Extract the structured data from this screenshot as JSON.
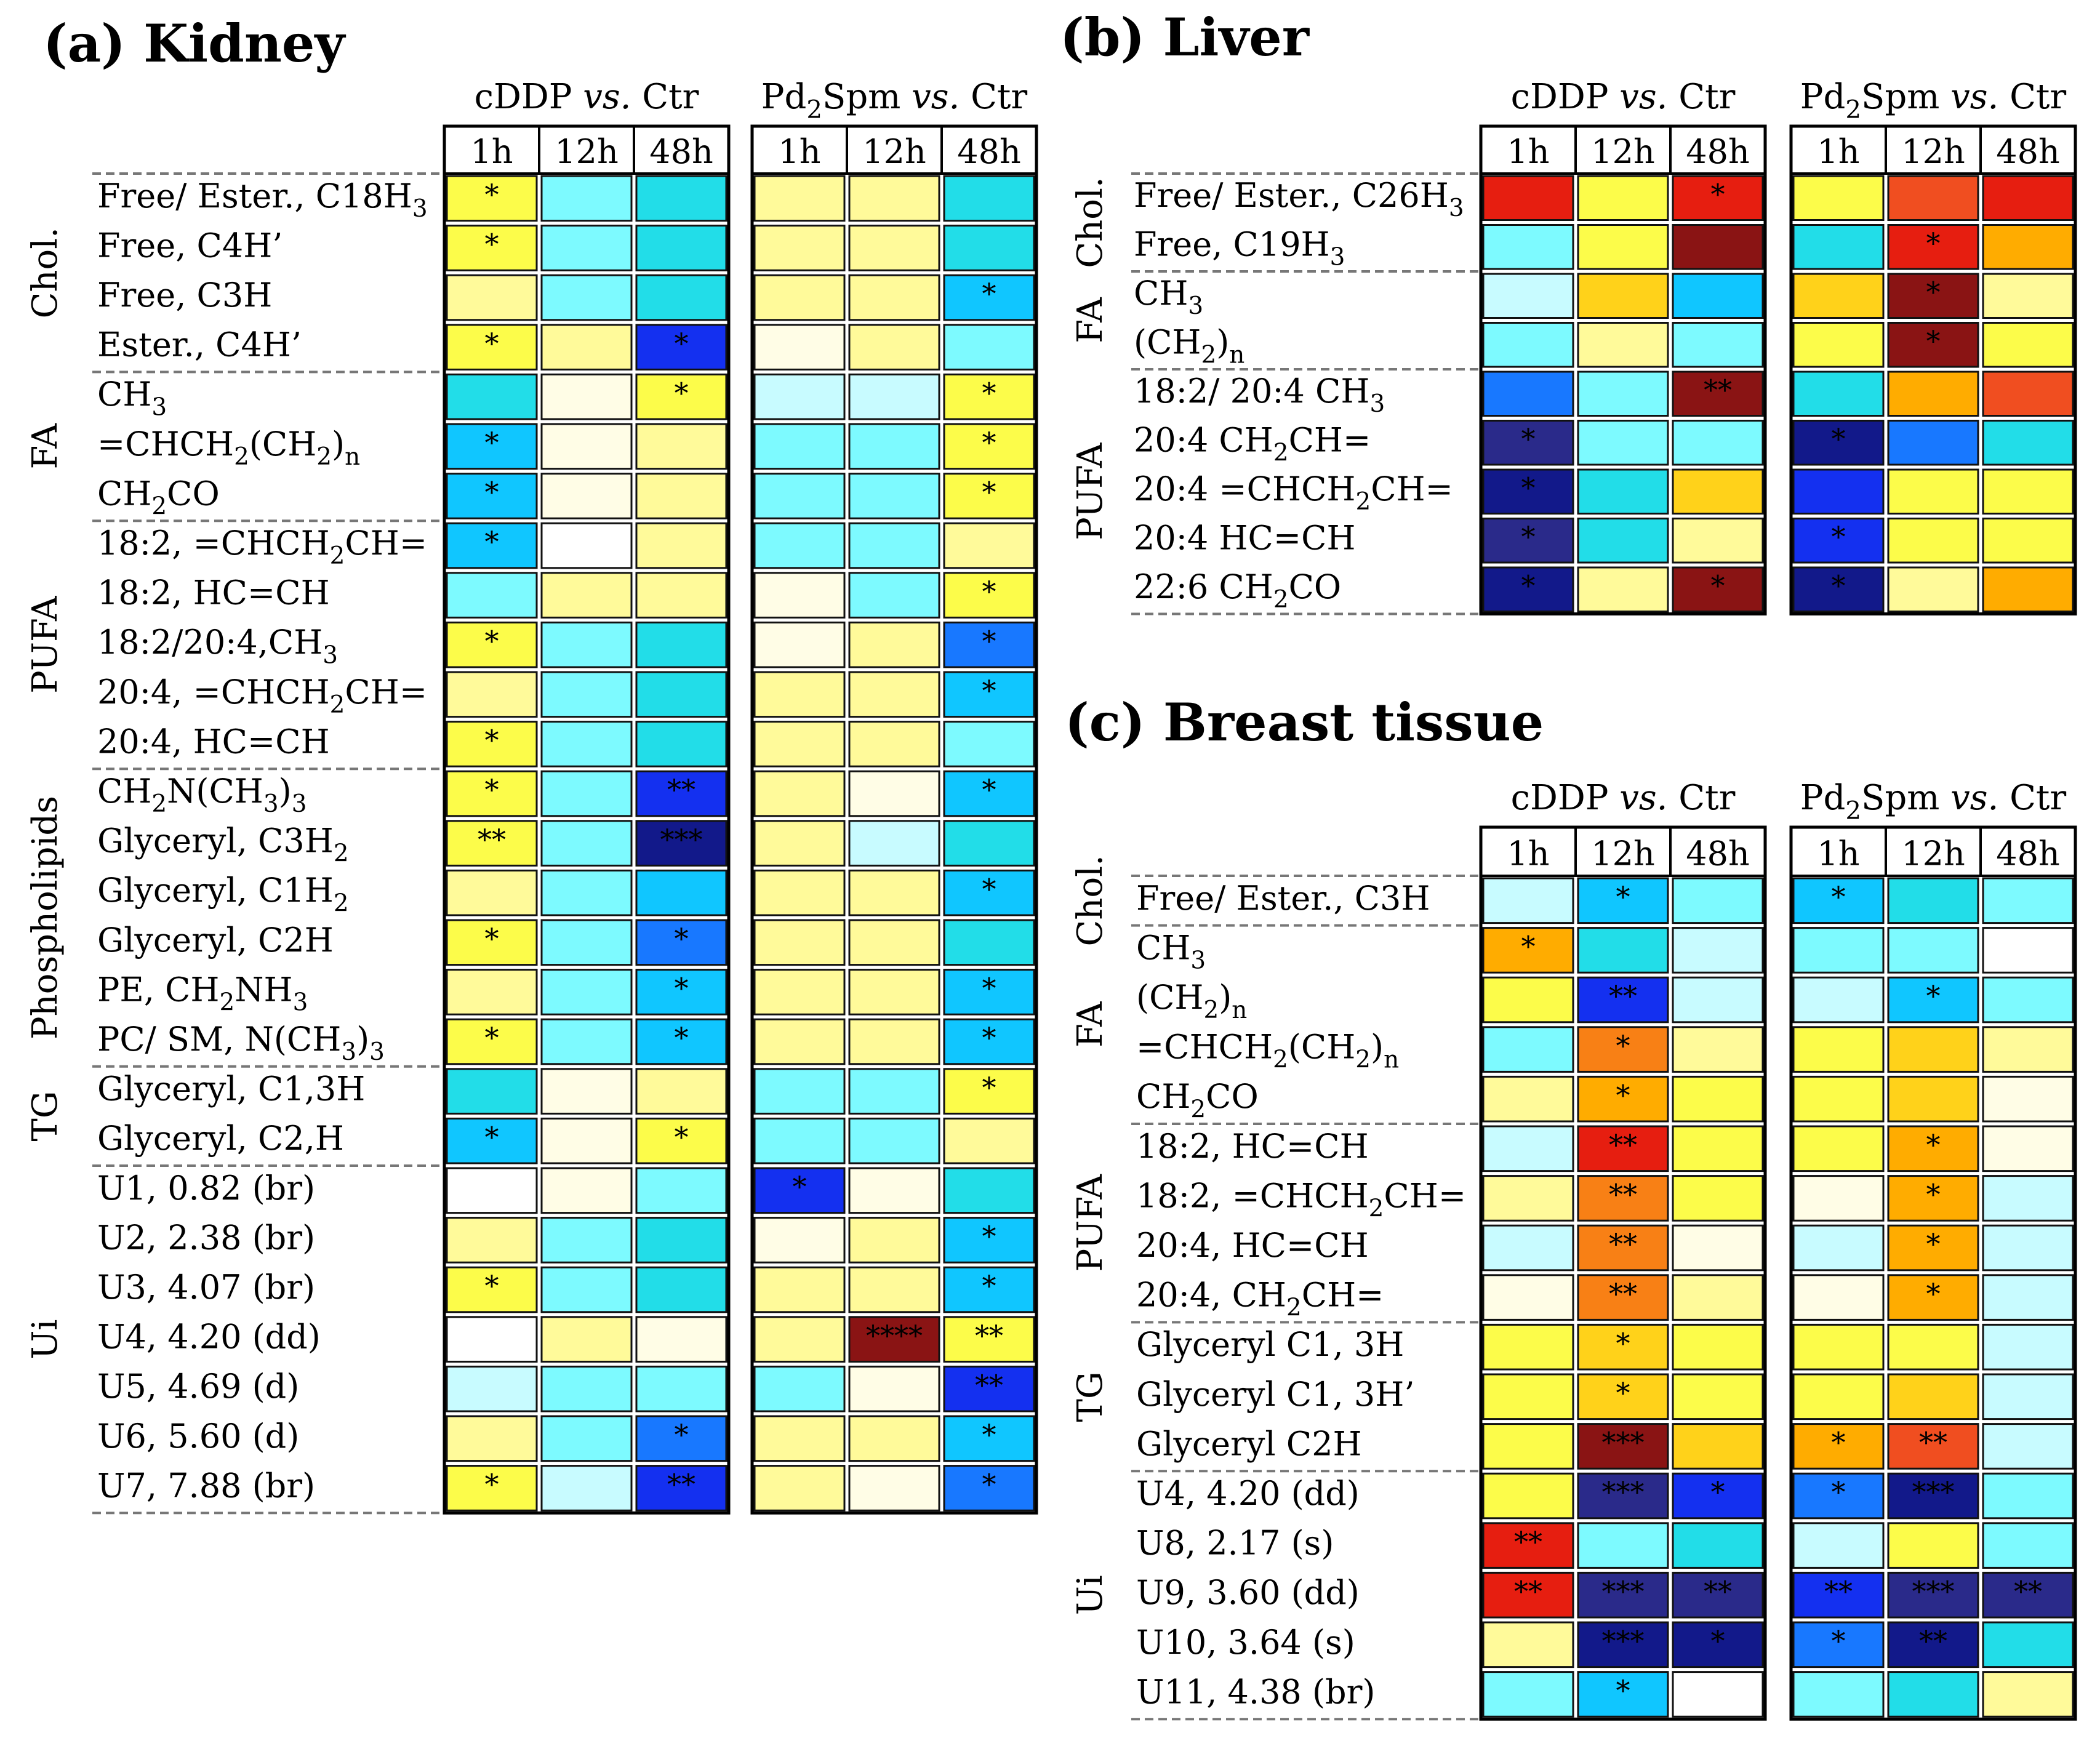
{
  "colors": {
    "L": "#fffde6",
    "Y": "#fffa9a",
    "y": "#fcfc4a",
    "C": "#c8fbff",
    "c": "#7dfaff",
    "k": "#22dde8",
    "m": "#10c6ff",
    "n": "#1878ff",
    "B": "#1430f0",
    "N": "#12198a",
    "D": "#2a2a8a",
    "P": "#0a1a6e",
    "G": "#ffd21a",
    "O": "#ffac00",
    "o": "#f88015",
    "R": "#f04e20",
    "r": "#e61e10",
    "M": "#8a1414",
    "W": "#ffffff"
  },
  "chart_data": [
    {
      "type": "heatmap",
      "panel": "(a)",
      "title": "(a) Kidney",
      "group_titles": [
        "cDDP vs. Ctr",
        "Pd2Spm vs. Ctr"
      ],
      "time_points": [
        "1h",
        "12h",
        "48h"
      ],
      "categories": [
        {
          "name": "Chol.",
          "rows": [
            0,
            3
          ]
        },
        {
          "name": "FA",
          "rows": [
            4,
            6
          ]
        },
        {
          "name": "PUFA",
          "rows": [
            7,
            11
          ]
        },
        {
          "name": "Phospholipids",
          "rows": [
            12,
            17
          ]
        },
        {
          "name": "TG",
          "rows": [
            18,
            19
          ]
        },
        {
          "name": "Ui",
          "rows": [
            20,
            26
          ]
        }
      ],
      "rows": [
        {
          "label": "Free/ Ester., C18H3",
          "colors": [
            "y",
            "c",
            "k",
            "Y",
            "Y",
            "k"
          ],
          "marks": [
            "*",
            "",
            "",
            "",
            "",
            ""
          ]
        },
        {
          "label": "Free, C4H’",
          "colors": [
            "y",
            "c",
            "k",
            "Y",
            "Y",
            "k"
          ],
          "marks": [
            "*",
            "",
            "",
            "",
            "",
            ""
          ]
        },
        {
          "label": "Free, C3H",
          "colors": [
            "Y",
            "c",
            "k",
            "Y",
            "Y",
            "m"
          ],
          "marks": [
            "",
            "",
            "",
            "",
            "",
            "*"
          ]
        },
        {
          "label": "Ester., C4H’",
          "colors": [
            "y",
            "Y",
            "B",
            "L",
            "Y",
            "c"
          ],
          "marks": [
            "*",
            "",
            "*",
            "",
            "",
            ""
          ]
        },
        {
          "label": "CH3",
          "colors": [
            "k",
            "L",
            "y",
            "C",
            "C",
            "y"
          ],
          "marks": [
            "",
            "",
            "*",
            "",
            "",
            "*"
          ]
        },
        {
          "label": "=CHCH2(CH2)n",
          "colors": [
            "m",
            "L",
            "Y",
            "c",
            "c",
            "y"
          ],
          "marks": [
            "*",
            "",
            "",
            "",
            "",
            "*"
          ]
        },
        {
          "label": "CH2CO",
          "colors": [
            "m",
            "L",
            "Y",
            "c",
            "c",
            "y"
          ],
          "marks": [
            "*",
            "",
            "",
            "",
            "",
            "*"
          ]
        },
        {
          "label": "18:2, =CHCH2CH=",
          "colors": [
            "m",
            "W",
            "Y",
            "c",
            "c",
            "Y"
          ],
          "marks": [
            "*",
            "",
            "",
            "",
            "",
            ""
          ]
        },
        {
          "label": "18:2, HC=CH",
          "colors": [
            "c",
            "Y",
            "Y",
            "L",
            "c",
            "y"
          ],
          "marks": [
            "",
            "",
            "",
            "",
            "",
            "*"
          ]
        },
        {
          "label": "18:2/20:4,CH3",
          "colors": [
            "y",
            "c",
            "k",
            "L",
            "Y",
            "n"
          ],
          "marks": [
            "*",
            "",
            "",
            "",
            "",
            "*"
          ]
        },
        {
          "label": "20:4, =CHCH2CH=",
          "colors": [
            "Y",
            "c",
            "k",
            "Y",
            "Y",
            "m"
          ],
          "marks": [
            "",
            "",
            "",
            "",
            "",
            "*"
          ]
        },
        {
          "label": "20:4, HC=CH",
          "colors": [
            "y",
            "c",
            "k",
            "Y",
            "Y",
            "c"
          ],
          "marks": [
            "*",
            "",
            "",
            "",
            "",
            ""
          ]
        },
        {
          "label": "CH2N(CH3)3",
          "colors": [
            "y",
            "c",
            "B",
            "Y",
            "L",
            "m"
          ],
          "marks": [
            "*",
            "",
            "**",
            "",
            "",
            "*"
          ]
        },
        {
          "label": "Glyceryl, C3H2",
          "colors": [
            "y",
            "c",
            "N",
            "Y",
            "C",
            "k"
          ],
          "marks": [
            "**",
            "",
            "***",
            "",
            "",
            ""
          ]
        },
        {
          "label": "Glyceryl, C1H2",
          "colors": [
            "Y",
            "c",
            "m",
            "Y",
            "Y",
            "m"
          ],
          "marks": [
            "",
            "",
            "",
            "",
            "",
            "*"
          ]
        },
        {
          "label": "Glyceryl, C2H",
          "colors": [
            "y",
            "c",
            "n",
            "Y",
            "Y",
            "k"
          ],
          "marks": [
            "*",
            "",
            "*",
            "",
            "",
            ""
          ]
        },
        {
          "label": "PE, CH2NH3",
          "colors": [
            "Y",
            "c",
            "m",
            "Y",
            "Y",
            "m"
          ],
          "marks": [
            "",
            "",
            "*",
            "",
            "",
            "*"
          ]
        },
        {
          "label": "PC/ SM, N(CH3)3",
          "colors": [
            "y",
            "c",
            "m",
            "Y",
            "Y",
            "m"
          ],
          "marks": [
            "*",
            "",
            "*",
            "",
            "",
            "*"
          ]
        },
        {
          "label": "Glyceryl, C1,3H",
          "colors": [
            "k",
            "L",
            "Y",
            "c",
            "c",
            "y"
          ],
          "marks": [
            "",
            "",
            "",
            "",
            "",
            "*"
          ]
        },
        {
          "label": "Glyceryl, C2,H",
          "colors": [
            "m",
            "L",
            "y",
            "c",
            "c",
            "Y"
          ],
          "marks": [
            "*",
            "",
            "*",
            "",
            "",
            ""
          ]
        },
        {
          "label": "U1, 0.82 (br)",
          "colors": [
            "W",
            "L",
            "c",
            "B",
            "L",
            "k"
          ],
          "marks": [
            "",
            "",
            "",
            "*",
            "",
            ""
          ]
        },
        {
          "label": "U2, 2.38 (br)",
          "colors": [
            "Y",
            "c",
            "k",
            "L",
            "Y",
            "m"
          ],
          "marks": [
            "",
            "",
            "",
            "",
            "",
            "*"
          ]
        },
        {
          "label": "U3, 4.07 (br)",
          "colors": [
            "y",
            "c",
            "k",
            "Y",
            "Y",
            "m"
          ],
          "marks": [
            "*",
            "",
            "",
            "",
            "",
            "*"
          ]
        },
        {
          "label": "U4, 4.20 (dd)",
          "colors": [
            "W",
            "Y",
            "L",
            "Y",
            "M",
            "y"
          ],
          "marks": [
            "",
            "",
            "",
            "",
            "****",
            "**"
          ]
        },
        {
          "label": "U5, 4.69 (d)",
          "colors": [
            "C",
            "c",
            "c",
            "c",
            "L",
            "B"
          ],
          "marks": [
            "",
            "",
            "",
            "",
            "",
            "**"
          ]
        },
        {
          "label": "U6, 5.60 (d)",
          "colors": [
            "Y",
            "c",
            "n",
            "Y",
            "Y",
            "m"
          ],
          "marks": [
            "",
            "",
            "*",
            "",
            "",
            "*"
          ]
        },
        {
          "label": "U7, 7.88 (br)",
          "colors": [
            "y",
            "C",
            "B",
            "Y",
            "L",
            "n"
          ],
          "marks": [
            "*",
            "",
            "**",
            "",
            "",
            "*"
          ]
        }
      ]
    },
    {
      "type": "heatmap",
      "panel": "(b)",
      "title": "(b) Liver",
      "group_titles": [
        "cDDP vs. Ctr",
        "Pd2Spm vs. Ctr"
      ],
      "time_points": [
        "1h",
        "12h",
        "48h"
      ],
      "categories": [
        {
          "name": "Chol.",
          "rows": [
            0,
            1
          ]
        },
        {
          "name": "FA",
          "rows": [
            2,
            3
          ]
        },
        {
          "name": "PUFA",
          "rows": [
            4,
            8
          ]
        }
      ],
      "rows": [
        {
          "label": "Free/ Ester., C26H3",
          "colors": [
            "r",
            "y",
            "r",
            "y",
            "R",
            "r"
          ],
          "marks": [
            "",
            "",
            "*",
            "",
            "",
            ""
          ]
        },
        {
          "label": "Free, C19H3",
          "colors": [
            "c",
            "y",
            "M",
            "k",
            "r",
            "O"
          ],
          "marks": [
            "",
            "",
            "",
            "",
            "*",
            ""
          ]
        },
        {
          "label": "CH3",
          "colors": [
            "C",
            "G",
            "m",
            "G",
            "M",
            "Y"
          ],
          "marks": [
            "",
            "",
            "",
            "",
            "*",
            ""
          ]
        },
        {
          "label": "(CH2)n",
          "colors": [
            "c",
            "Y",
            "c",
            "y",
            "M",
            "y"
          ],
          "marks": [
            "",
            "",
            "",
            "",
            "*",
            ""
          ]
        },
        {
          "label": "18:2/ 20:4 CH3",
          "colors": [
            "n",
            "c",
            "M",
            "k",
            "O",
            "R"
          ],
          "marks": [
            "",
            "",
            "**",
            "",
            "",
            ""
          ]
        },
        {
          "label": "20:4 CH2CH=",
          "colors": [
            "D",
            "c",
            "c",
            "N",
            "n",
            "k"
          ],
          "marks": [
            "*",
            "",
            "",
            "*",
            "",
            ""
          ]
        },
        {
          "label": "20:4 =CHCH2CH=",
          "colors": [
            "N",
            "k",
            "G",
            "B",
            "y",
            "y"
          ],
          "marks": [
            "*",
            "",
            "",
            "",
            "",
            ""
          ]
        },
        {
          "label": "20:4 HC=CH",
          "colors": [
            "D",
            "k",
            "Y",
            "B",
            "y",
            "y"
          ],
          "marks": [
            "*",
            "",
            "",
            "*",
            "",
            ""
          ]
        },
        {
          "label": "22:6 CH2CO",
          "colors": [
            "N",
            "Y",
            "M",
            "N",
            "Y",
            "O"
          ],
          "marks": [
            "*",
            "",
            "*",
            "*",
            "",
            ""
          ]
        }
      ]
    },
    {
      "type": "heatmap",
      "panel": "(c)",
      "title": "(c) Breast tissue",
      "group_titles": [
        "cDDP vs. Ctr",
        "Pd2Spm vs. Ctr"
      ],
      "time_points": [
        "1h",
        "12h",
        "48h"
      ],
      "categories": [
        {
          "name": "Chol.",
          "rows": [
            0,
            0
          ]
        },
        {
          "name": "FA",
          "rows": [
            1,
            4
          ]
        },
        {
          "name": "PUFA",
          "rows": [
            5,
            8
          ]
        },
        {
          "name": "TG",
          "rows": [
            9,
            11
          ]
        },
        {
          "name": "Ui",
          "rows": [
            12,
            16
          ]
        }
      ],
      "rows": [
        {
          "label": "Free/ Ester., C3H",
          "colors": [
            "C",
            "m",
            "c",
            "m",
            "k",
            "c"
          ],
          "marks": [
            "",
            "*",
            "",
            "*",
            "",
            ""
          ]
        },
        {
          "label": "CH3",
          "colors": [
            "O",
            "k",
            "C",
            "c",
            "c",
            "W"
          ],
          "marks": [
            "*",
            "",
            "",
            "",
            "",
            ""
          ]
        },
        {
          "label": "(CH2)n",
          "colors": [
            "y",
            "B",
            "C",
            "C",
            "m",
            "c"
          ],
          "marks": [
            "",
            "**",
            "",
            "",
            "*",
            ""
          ]
        },
        {
          "label": "=CHCH2(CH2)n",
          "colors": [
            "c",
            "o",
            "Y",
            "y",
            "G",
            "Y"
          ],
          "marks": [
            "",
            "*",
            "",
            "",
            "",
            ""
          ]
        },
        {
          "label": "CH2CO",
          "colors": [
            "Y",
            "O",
            "y",
            "y",
            "G",
            "L"
          ],
          "marks": [
            "",
            "*",
            "",
            "",
            "",
            ""
          ]
        },
        {
          "label": "18:2, HC=CH",
          "colors": [
            "C",
            "r",
            "y",
            "y",
            "O",
            "L"
          ],
          "marks": [
            "",
            "**",
            "",
            "",
            "*",
            ""
          ]
        },
        {
          "label": "18:2, =CHCH2CH=",
          "colors": [
            "Y",
            "o",
            "y",
            "L",
            "O",
            "C"
          ],
          "marks": [
            "",
            "**",
            "",
            "",
            "*",
            ""
          ]
        },
        {
          "label": "20:4, HC=CH",
          "colors": [
            "C",
            "o",
            "L",
            "C",
            "O",
            "C"
          ],
          "marks": [
            "",
            "**",
            "",
            "",
            "*",
            ""
          ]
        },
        {
          "label": "20:4, CH2CH=",
          "colors": [
            "L",
            "o",
            "Y",
            "L",
            "O",
            "C"
          ],
          "marks": [
            "",
            "**",
            "",
            "",
            "*",
            ""
          ]
        },
        {
          "label": "Glyceryl C1, 3H",
          "colors": [
            "y",
            "G",
            "y",
            "y",
            "y",
            "C"
          ],
          "marks": [
            "",
            "*",
            "",
            "",
            "",
            ""
          ]
        },
        {
          "label": "Glyceryl C1, 3H’",
          "colors": [
            "y",
            "G",
            "y",
            "y",
            "G",
            "C"
          ],
          "marks": [
            "",
            "*",
            "",
            "",
            "",
            ""
          ]
        },
        {
          "label": "Glyceryl C2H",
          "colors": [
            "y",
            "M",
            "G",
            "O",
            "R",
            "C"
          ],
          "marks": [
            "",
            "***",
            "",
            "*",
            "**",
            ""
          ]
        },
        {
          "label": "U4, 4.20 (dd)",
          "colors": [
            "y",
            "D",
            "B",
            "n",
            "N",
            "c"
          ],
          "marks": [
            "",
            "***",
            "*",
            "*",
            "***",
            ""
          ]
        },
        {
          "label": "U8, 2.17 (s)",
          "colors": [
            "r",
            "c",
            "k",
            "C",
            "y",
            "c"
          ],
          "marks": [
            "**",
            "",
            "",
            "",
            "",
            ""
          ]
        },
        {
          "label": "U9, 3.60 (dd)",
          "colors": [
            "r",
            "D",
            "D",
            "B",
            "D",
            "D"
          ],
          "marks": [
            "**",
            "***",
            "**",
            "**",
            "***",
            "**"
          ]
        },
        {
          "label": "U10, 3.64 (s)",
          "colors": [
            "Y",
            "N",
            "N",
            "n",
            "N",
            "k"
          ],
          "marks": [
            "",
            "***",
            "*",
            "*",
            "**",
            ""
          ]
        },
        {
          "label": "U11, 4.38 (br)",
          "colors": [
            "c",
            "m",
            "W",
            "c",
            "k",
            "Y"
          ],
          "marks": [
            "",
            "*",
            "",
            "",
            "",
            ""
          ]
        }
      ]
    }
  ]
}
